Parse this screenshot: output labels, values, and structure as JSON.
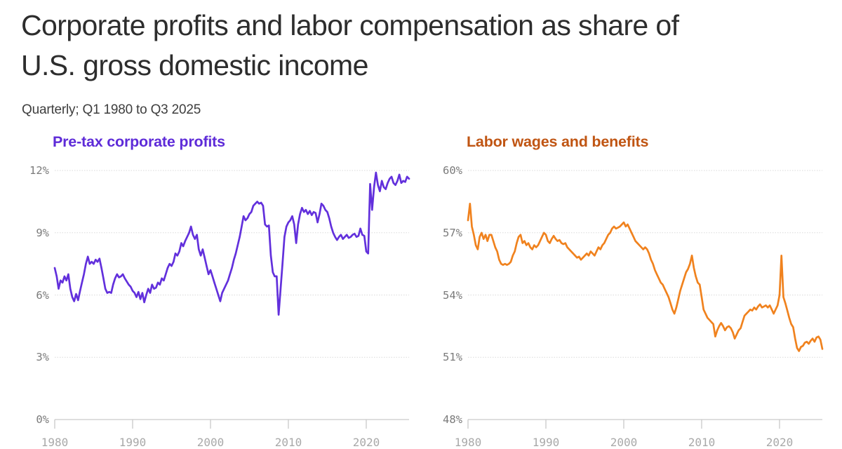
{
  "header": {
    "title": "Corporate profits and labor compensation as share of U.S. gross domestic income",
    "title_lines": [
      "Corporate profits and labor compensation as share of",
      "U.S. gross domestic income"
    ],
    "subtitle": "Quarterly; Q1 1980 to Q3 2025"
  },
  "chart_data": [
    {
      "type": "line",
      "title": "Pre-tax corporate profits",
      "title_color": "#5e2bd8",
      "line_color": "#6230dc",
      "xlabel": "",
      "ylabel": "",
      "legend": "none",
      "grid": "horizontal-dotted",
      "xlim": [
        1980,
        2025.5
      ],
      "ylim": [
        0,
        12
      ],
      "x_start": 1980,
      "x_step": 0.25,
      "x_unit": "quarter",
      "yticks": [
        {
          "value": 12,
          "label": "12%"
        },
        {
          "value": 9,
          "label": "9%"
        },
        {
          "value": 6,
          "label": "6%"
        },
        {
          "value": 3,
          "label": "3%"
        },
        {
          "value": 0,
          "label": "0%"
        }
      ],
      "xticks": [
        {
          "value": 1980,
          "label": "1980"
        },
        {
          "value": 1990,
          "label": "1990"
        },
        {
          "value": 2000,
          "label": "2000"
        },
        {
          "value": 2010,
          "label": "2010"
        },
        {
          "value": 2020,
          "label": "2020"
        }
      ],
      "values": [
        7.3,
        6.9,
        6.3,
        6.7,
        6.6,
        6.9,
        6.7,
        7.0,
        6.3,
        5.9,
        5.7,
        6.05,
        5.75,
        6.2,
        6.6,
        7.0,
        7.5,
        7.85,
        7.5,
        7.6,
        7.5,
        7.7,
        7.6,
        7.75,
        7.3,
        6.8,
        6.3,
        6.1,
        6.15,
        6.1,
        6.5,
        6.8,
        7.0,
        6.85,
        6.9,
        7.0,
        6.8,
        6.65,
        6.5,
        6.4,
        6.2,
        6.1,
        5.9,
        6.15,
        5.8,
        6.1,
        5.65,
        6.0,
        6.3,
        6.1,
        6.5,
        6.3,
        6.35,
        6.6,
        6.5,
        6.8,
        6.7,
        7.0,
        7.3,
        7.5,
        7.4,
        7.6,
        8.0,
        7.9,
        8.1,
        8.5,
        8.35,
        8.6,
        8.8,
        9.0,
        9.3,
        8.9,
        8.7,
        8.9,
        8.2,
        7.9,
        8.2,
        7.8,
        7.4,
        7.0,
        7.2,
        6.9,
        6.6,
        6.3,
        6.0,
        5.7,
        6.1,
        6.3,
        6.5,
        6.7,
        7.0,
        7.3,
        7.7,
        8.0,
        8.4,
        8.8,
        9.3,
        9.8,
        9.6,
        9.7,
        9.9,
        10.0,
        10.3,
        10.4,
        10.5,
        10.4,
        10.45,
        10.3,
        9.4,
        9.3,
        9.35,
        7.9,
        7.1,
        6.9,
        6.9,
        5.05,
        6.3,
        7.5,
        8.8,
        9.3,
        9.5,
        9.6,
        9.8,
        9.4,
        8.5,
        9.4,
        9.9,
        10.2,
        10.0,
        10.1,
        9.9,
        10.05,
        9.85,
        10.0,
        9.95,
        9.5,
        9.9,
        10.4,
        10.3,
        10.1,
        10.0,
        9.7,
        9.3,
        9.0,
        8.8,
        8.65,
        8.8,
        8.9,
        8.7,
        8.8,
        8.9,
        8.75,
        8.8,
        8.9,
        8.95,
        8.8,
        8.85,
        9.2,
        8.9,
        8.85,
        8.1,
        8.0,
        11.35,
        10.1,
        11.2,
        11.9,
        11.3,
        11.0,
        11.5,
        11.2,
        11.1,
        11.4,
        11.6,
        11.7,
        11.4,
        11.3,
        11.5,
        11.8,
        11.4,
        11.5,
        11.45,
        11.7,
        11.6
      ]
    },
    {
      "type": "line",
      "title": "Labor wages and benefits",
      "title_color": "#c05513",
      "line_color": "#f0821e",
      "xlabel": "",
      "ylabel": "",
      "legend": "none",
      "grid": "horizontal-dotted",
      "xlim": [
        1980,
        2025.5
      ],
      "ylim": [
        48,
        60
      ],
      "x_start": 1980,
      "x_step": 0.25,
      "x_unit": "quarter",
      "yticks": [
        {
          "value": 60,
          "label": "60%"
        },
        {
          "value": 57,
          "label": "57%"
        },
        {
          "value": 54,
          "label": "54%"
        },
        {
          "value": 51,
          "label": "51%"
        },
        {
          "value": 48,
          "label": "48%"
        }
      ],
      "xticks": [
        {
          "value": 1980,
          "label": "1980"
        },
        {
          "value": 1990,
          "label": "1990"
        },
        {
          "value": 2000,
          "label": "2000"
        },
        {
          "value": 2010,
          "label": "2010"
        },
        {
          "value": 2020,
          "label": "2020"
        }
      ],
      "values": [
        57.6,
        58.4,
        57.3,
        56.9,
        56.4,
        56.2,
        56.8,
        57.0,
        56.7,
        56.9,
        56.6,
        56.9,
        56.9,
        56.6,
        56.3,
        56.1,
        55.7,
        55.5,
        55.45,
        55.5,
        55.45,
        55.5,
        55.6,
        55.9,
        56.1,
        56.5,
        56.8,
        56.9,
        56.5,
        56.6,
        56.4,
        56.5,
        56.3,
        56.2,
        56.4,
        56.3,
        56.4,
        56.6,
        56.8,
        57.0,
        56.9,
        56.6,
        56.5,
        56.7,
        56.85,
        56.7,
        56.6,
        56.65,
        56.5,
        56.45,
        56.5,
        56.3,
        56.2,
        56.1,
        56.0,
        55.9,
        55.8,
        55.85,
        55.7,
        55.8,
        55.9,
        56.0,
        55.9,
        56.1,
        56.0,
        55.9,
        56.1,
        56.3,
        56.2,
        56.4,
        56.5,
        56.7,
        56.9,
        57.0,
        57.2,
        57.3,
        57.2,
        57.25,
        57.3,
        57.4,
        57.5,
        57.3,
        57.4,
        57.2,
        57.0,
        56.8,
        56.6,
        56.5,
        56.4,
        56.3,
        56.2,
        56.3,
        56.2,
        56.0,
        55.7,
        55.5,
        55.2,
        55.0,
        54.8,
        54.6,
        54.5,
        54.3,
        54.1,
        53.9,
        53.6,
        53.3,
        53.1,
        53.4,
        53.8,
        54.2,
        54.5,
        54.8,
        55.1,
        55.25,
        55.5,
        55.9,
        55.3,
        54.9,
        54.6,
        54.5,
        53.9,
        53.3,
        53.1,
        52.9,
        52.8,
        52.7,
        52.6,
        52.0,
        52.3,
        52.5,
        52.65,
        52.5,
        52.3,
        52.45,
        52.5,
        52.4,
        52.2,
        51.9,
        52.1,
        52.3,
        52.4,
        52.7,
        53.0,
        53.1,
        53.2,
        53.3,
        53.25,
        53.4,
        53.3,
        53.45,
        53.55,
        53.4,
        53.45,
        53.5,
        53.4,
        53.5,
        53.3,
        53.1,
        53.3,
        53.5,
        54.0,
        55.9,
        53.9,
        53.6,
        53.25,
        52.9,
        52.6,
        52.45,
        51.9,
        51.45,
        51.3,
        51.5,
        51.55,
        51.7,
        51.75,
        51.65,
        51.8,
        51.9,
        51.75,
        51.95,
        52.0,
        51.85,
        51.4
      ]
    }
  ]
}
